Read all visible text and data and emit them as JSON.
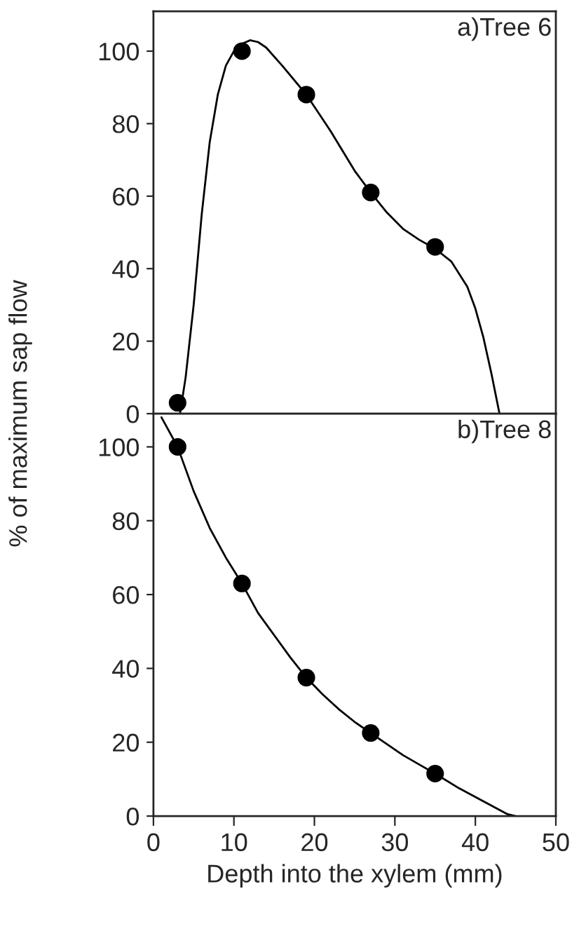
{
  "chart_data": [
    {
      "type": "scatter",
      "ylabel": "% of maximum sap flow",
      "annotations": [
        "a)Tree 6"
      ],
      "xlim": [
        0,
        50
      ],
      "ylim": [
        0,
        111
      ],
      "xticks": [
        0,
        10,
        20,
        30,
        40,
        50
      ],
      "yticks": [
        0,
        20,
        40,
        60,
        80,
        100
      ],
      "tick_labels": "y",
      "grid": false,
      "series": [
        {
          "marker": "circle",
          "color": "#000000",
          "x": [
            3,
            11,
            19,
            27,
            35
          ],
          "values": [
            3,
            100,
            88,
            61,
            46
          ]
        },
        {
          "type": "line",
          "marker": "none",
          "color": "#000000",
          "line_style": "solid",
          "x": [
            3.3,
            4,
            5,
            6,
            7,
            8,
            9,
            10,
            11,
            12,
            13,
            14,
            16,
            19,
            22,
            25,
            27,
            29,
            31,
            33,
            35,
            37,
            39,
            40,
            41,
            42,
            43
          ],
          "values": [
            0,
            10,
            30,
            55,
            75,
            88,
            96,
            100,
            102,
            103,
            102.5,
            101,
            96,
            88,
            78,
            67,
            61,
            55.5,
            51,
            48,
            45.5,
            42,
            35,
            29,
            21,
            11,
            0
          ]
        }
      ]
    },
    {
      "type": "scatter",
      "xlabel": "Depth into the xylem (mm)",
      "annotations": [
        "b)Tree 8"
      ],
      "xlim": [
        0,
        50
      ],
      "ylim": [
        0,
        109
      ],
      "xticks": [
        0,
        10,
        20,
        30,
        40,
        50
      ],
      "yticks": [
        0,
        20,
        40,
        60,
        80,
        100
      ],
      "grid": false,
      "series": [
        {
          "marker": "circle",
          "color": "#000000",
          "x": [
            3,
            11,
            19,
            27,
            35
          ],
          "values": [
            100,
            63,
            37.5,
            22.5,
            11.5
          ]
        },
        {
          "type": "line",
          "marker": "none",
          "color": "#000000",
          "line_style": "solid",
          "x": [
            1,
            3,
            5,
            7,
            9,
            11,
            13,
            15,
            17,
            19,
            21,
            23,
            25,
            27,
            29,
            31,
            33,
            35,
            38,
            41,
            44,
            45
          ],
          "values": [
            108,
            100,
            88,
            78,
            70,
            63,
            55,
            49,
            43,
            37.5,
            33,
            29,
            25.5,
            22.5,
            19.5,
            16.5,
            14,
            11.5,
            7.5,
            4,
            0.5,
            0
          ]
        }
      ]
    }
  ]
}
